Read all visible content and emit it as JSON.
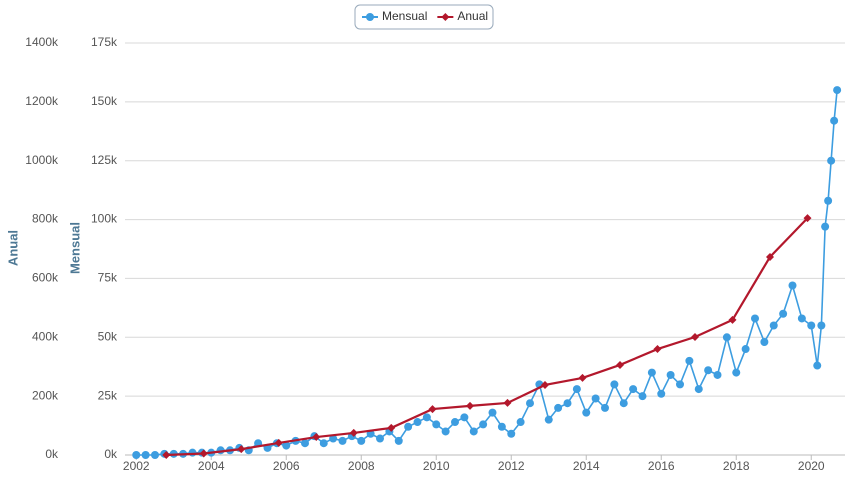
{
  "chart_data": {
    "type": "line",
    "legend": "top",
    "grid": true,
    "xlim": [
      2001.7,
      2020.9
    ],
    "xticks": [
      2002,
      2004,
      2006,
      2008,
      2010,
      2012,
      2014,
      2016,
      2018,
      2020
    ],
    "ylabel": "Mensual",
    "ylim": [
      0,
      175000
    ],
    "yticks": [
      {
        "value": 0,
        "label": "0k"
      },
      {
        "value": 25000,
        "label": "25k"
      },
      {
        "value": 50000,
        "label": "50k"
      },
      {
        "value": 75000,
        "label": "75k"
      },
      {
        "value": 100000,
        "label": "100k"
      },
      {
        "value": 125000,
        "label": "125k"
      },
      {
        "value": 150000,
        "label": "150k"
      },
      {
        "value": 175000,
        "label": "175k"
      }
    ],
    "y2label": "Anual",
    "y2lim": [
      0,
      1400000
    ],
    "y2ticks": [
      {
        "value": 0,
        "label": "0k"
      },
      {
        "value": 200000,
        "label": "200k"
      },
      {
        "value": 400000,
        "label": "400k"
      },
      {
        "value": 600000,
        "label": "600k"
      },
      {
        "value": 800000,
        "label": "800k"
      },
      {
        "value": 1000000,
        "label": "1000k"
      },
      {
        "value": 1200000,
        "label": "1200k"
      },
      {
        "value": 1400000,
        "label": "1400k"
      }
    ],
    "series": [
      {
        "name": "Mensual",
        "color": "#3d9de0",
        "x": [
          2002.0,
          2002.25,
          2002.5,
          2002.75,
          2003.0,
          2003.25,
          2003.5,
          2003.75,
          2004.0,
          2004.25,
          2004.5,
          2004.75,
          2005.0,
          2005.25,
          2005.5,
          2005.75,
          2006.0,
          2006.25,
          2006.5,
          2006.75,
          2007.0,
          2007.25,
          2007.5,
          2007.75,
          2008.0,
          2008.25,
          2008.5,
          2008.75,
          2009.0,
          2009.25,
          2009.5,
          2009.75,
          2010.0,
          2010.25,
          2010.5,
          2010.75,
          2011.0,
          2011.25,
          2011.5,
          2011.75,
          2012.0,
          2012.25,
          2012.5,
          2012.75,
          2013.0,
          2013.25,
          2013.5,
          2013.75,
          2014.0,
          2014.25,
          2014.5,
          2014.75,
          2015.0,
          2015.25,
          2015.5,
          2015.75,
          2016.0,
          2016.25,
          2016.5,
          2016.75,
          2017.0,
          2017.25,
          2017.5,
          2017.75,
          2018.0,
          2018.25,
          2018.5,
          2018.75,
          2019.0,
          2019.25,
          2019.5,
          2019.75,
          2020.0,
          2020.16,
          2020.27,
          2020.37,
          2020.45,
          2020.53,
          2020.61,
          2020.69
        ],
        "values": [
          0,
          0,
          0,
          500,
          500,
          500,
          1000,
          1000,
          1000,
          2000,
          2000,
          3000,
          2000,
          5000,
          3000,
          5000,
          4000,
          6000,
          5000,
          8000,
          5000,
          7000,
          6000,
          8000,
          6000,
          9000,
          7000,
          10000,
          6000,
          12000,
          14000,
          16000,
          13000,
          10000,
          14000,
          16000,
          10000,
          13000,
          18000,
          12000,
          9000,
          14000,
          22000,
          30000,
          15000,
          20000,
          22000,
          28000,
          18000,
          24000,
          20000,
          30000,
          22000,
          28000,
          25000,
          35000,
          26000,
          34000,
          30000,
          40000,
          28000,
          36000,
          34000,
          50000,
          35000,
          45000,
          58000,
          48000,
          55000,
          60000,
          72000,
          58000,
          55000,
          38000,
          55000,
          97000,
          108000,
          125000,
          142000,
          155000
        ]
      },
      {
        "name": "Anual",
        "color": "#b3182c",
        "axis": "y2",
        "x": [
          2002.8,
          2003.8,
          2004.8,
          2005.8,
          2006.8,
          2007.8,
          2008.8,
          2009.9,
          2010.9,
          2011.9,
          2012.9,
          2013.9,
          2014.9,
          2015.9,
          2016.9,
          2017.9,
          2018.9,
          2019.9
        ],
        "values": [
          0,
          5000,
          20000,
          41000,
          61000,
          75000,
          92000,
          156000,
          167000,
          177000,
          238000,
          262000,
          306000,
          360000,
          401000,
          459000,
          673000,
          805000
        ]
      }
    ]
  }
}
